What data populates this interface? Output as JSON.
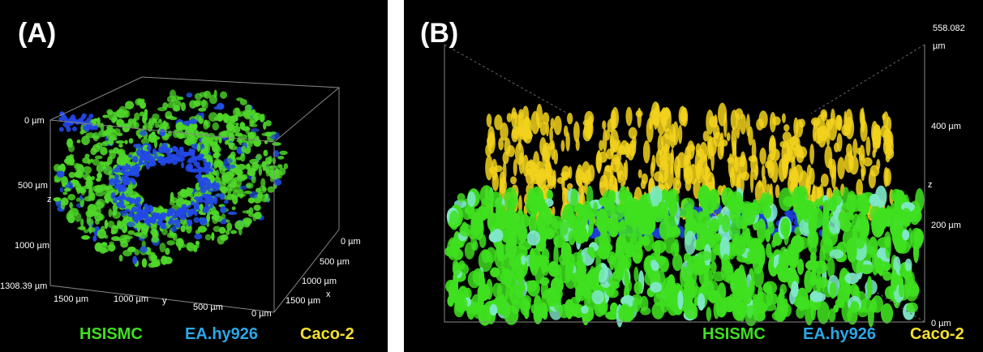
{
  "panels": [
    {
      "label": "(A)",
      "z_axis": [
        "0 µm",
        "500 µm",
        "z",
        "1000 µm",
        "1308.39 µm"
      ],
      "y_axis": [
        "1500 µm",
        "1000 µm",
        "y",
        "500 µm",
        "0 µm"
      ],
      "x_axis": [
        "0 µm",
        "500 µm",
        "1000 µm",
        "x",
        "1500 µm"
      ],
      "legend": [
        "HSISMC",
        "EA.hy926",
        "Caco-2"
      ]
    },
    {
      "label": "(B)",
      "z_axis": [
        "558.082",
        "µm",
        "400 µm",
        "z",
        "200 µm",
        "0 µm"
      ],
      "legend": [
        "HSISMC",
        "EA.hy926",
        "Caco-2"
      ]
    }
  ]
}
